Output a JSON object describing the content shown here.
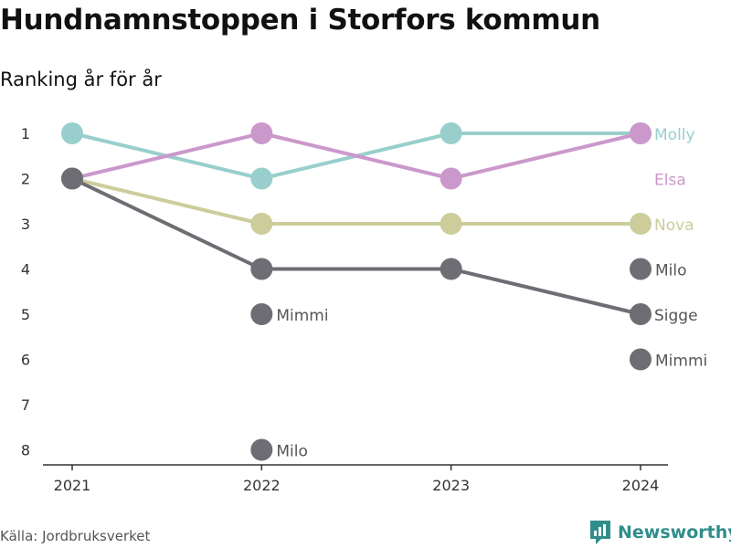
{
  "title": "Hundnamnstoppen i Storfors kommun",
  "subtitle": "Ranking år för år",
  "source": "Källa: Jordbruksverket",
  "brand": {
    "name": "Newsworthy",
    "color": "#2f8e8b"
  },
  "chart_data": {
    "type": "line",
    "x": [
      "2021",
      "2022",
      "2023",
      "2024"
    ],
    "y_ticks": [
      1,
      2,
      3,
      4,
      5,
      6,
      7,
      8
    ],
    "ylim": [
      8,
      1
    ],
    "y_reversed": true,
    "grid": false,
    "series": [
      {
        "name": "Molly",
        "color": "#98cfcd",
        "values": [
          1,
          2,
          1,
          1
        ],
        "end_label": "Molly"
      },
      {
        "name": "Elsa",
        "color": "#cb98cc",
        "values": [
          2,
          1,
          2,
          1
        ],
        "end_label": "Elsa"
      },
      {
        "name": "Nova",
        "color": "#cccd9b",
        "values": [
          2,
          3,
          3,
          3
        ],
        "end_label": "Nova"
      },
      {
        "name": "Sigge",
        "color": "#6e6d74",
        "values": [
          2,
          4,
          4,
          5
        ],
        "end_label": "Sigge"
      }
    ],
    "extra_points": [
      {
        "x": "2022",
        "rank": 5,
        "label": "Mimmi",
        "color": "#6e6d74"
      },
      {
        "x": "2022",
        "rank": 8,
        "label": "Milo",
        "color": "#6e6d74"
      },
      {
        "x": "2024",
        "rank": 4,
        "label": "Milo",
        "color": "#6e6d74"
      },
      {
        "x": "2024",
        "rank": 6,
        "label": "Mimmi",
        "color": "#6e6d74"
      }
    ]
  }
}
